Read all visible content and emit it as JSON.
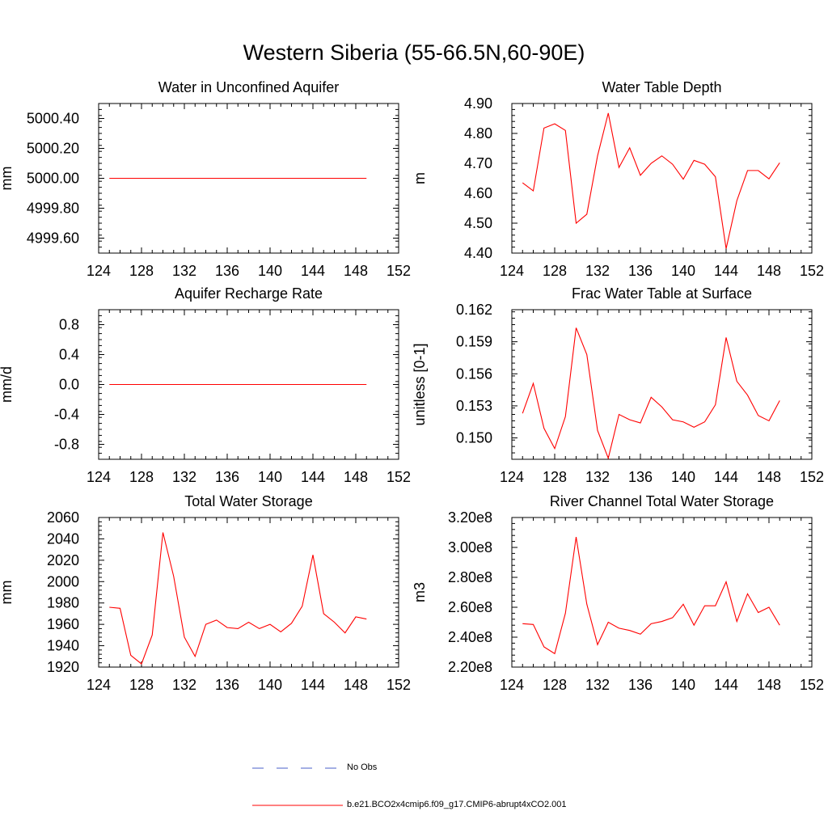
{
  "figure": {
    "title": "Western Siberia (55-66.5N,60-90E)",
    "colors": {
      "series": "#ff0000",
      "obs": "#4a5fc8",
      "axis": "#000000"
    }
  },
  "legend": [
    {
      "label": "No Obs",
      "style": "dashed",
      "color": "#4a5fc8"
    },
    {
      "label": "b.e21.BCO2x4cmip6.f09_g17.CMIP6-abrupt4xCO2.001",
      "style": "solid",
      "color": "#ff0000"
    }
  ],
  "chart_data": [
    {
      "type": "line",
      "title": "Water in Unconfined Aquifer",
      "xlabel": "",
      "ylabel": "mm",
      "xlim": [
        124,
        152
      ],
      "ylim": [
        4999.5,
        5000.5
      ],
      "xticks": [
        124,
        128,
        132,
        136,
        140,
        144,
        148,
        152
      ],
      "yticks": [
        4999.6,
        4999.8,
        5000.0,
        5000.2,
        5000.4
      ],
      "ytick_labels": [
        "4999.60",
        "4999.80",
        "5000.00",
        "5000.20",
        "5000.40"
      ],
      "x": [
        125,
        126,
        127,
        128,
        129,
        130,
        131,
        132,
        133,
        134,
        135,
        136,
        137,
        138,
        139,
        140,
        141,
        142,
        143,
        144,
        145,
        146,
        147,
        148,
        149
      ],
      "series": [
        {
          "values": [
            5000,
            5000,
            5000,
            5000,
            5000,
            5000,
            5000,
            5000,
            5000,
            5000,
            5000,
            5000,
            5000,
            5000,
            5000,
            5000,
            5000,
            5000,
            5000,
            5000,
            5000,
            5000,
            5000,
            5000,
            5000
          ]
        }
      ]
    },
    {
      "type": "line",
      "title": "Water Table Depth",
      "xlabel": "",
      "ylabel": "m",
      "xlim": [
        124,
        152
      ],
      "ylim": [
        4.4,
        4.9
      ],
      "xticks": [
        124,
        128,
        132,
        136,
        140,
        144,
        148,
        152
      ],
      "yticks": [
        4.4,
        4.5,
        4.6,
        4.7,
        4.8,
        4.9
      ],
      "ytick_labels": [
        "4.40",
        "4.50",
        "4.60",
        "4.70",
        "4.80",
        "4.90"
      ],
      "x": [
        125,
        126,
        127,
        128,
        129,
        130,
        131,
        132,
        133,
        134,
        135,
        136,
        137,
        138,
        139,
        140,
        141,
        142,
        143,
        144,
        145,
        146,
        147,
        148,
        149
      ],
      "series": [
        {
          "values": [
            4.635,
            4.608,
            4.818,
            4.832,
            4.81,
            4.5,
            4.53,
            4.725,
            4.868,
            4.686,
            4.752,
            4.66,
            4.7,
            4.725,
            4.697,
            4.647,
            4.71,
            4.697,
            4.655,
            4.415,
            4.575,
            4.676,
            4.676,
            4.648,
            4.702
          ]
        }
      ]
    },
    {
      "type": "line",
      "title": "Aquifer Recharge Rate",
      "xlabel": "",
      "ylabel": "mm/d",
      "xlim": [
        124,
        152
      ],
      "ylim": [
        -1.0,
        1.0
      ],
      "xticks": [
        124,
        128,
        132,
        136,
        140,
        144,
        148,
        152
      ],
      "yticks": [
        -0.8,
        -0.4,
        0.0,
        0.4,
        0.8
      ],
      "ytick_labels": [
        "-0.8",
        "-0.4",
        "0.0",
        "0.4",
        "0.8"
      ],
      "x": [
        125,
        126,
        127,
        128,
        129,
        130,
        131,
        132,
        133,
        134,
        135,
        136,
        137,
        138,
        139,
        140,
        141,
        142,
        143,
        144,
        145,
        146,
        147,
        148,
        149
      ],
      "series": [
        {
          "values": [
            0,
            0,
            0,
            0,
            0,
            0,
            0,
            0,
            0,
            0,
            0,
            0,
            0,
            0,
            0,
            0,
            0,
            0,
            0,
            0,
            0,
            0,
            0,
            0,
            0
          ]
        }
      ]
    },
    {
      "type": "line",
      "title": "Frac Water Table at Surface",
      "xlabel": "",
      "ylabel": "unitless [0-1]",
      "xlim": [
        124,
        152
      ],
      "ylim": [
        0.148,
        0.162
      ],
      "xticks": [
        124,
        128,
        132,
        136,
        140,
        144,
        148,
        152
      ],
      "yticks": [
        0.15,
        0.153,
        0.156,
        0.159,
        0.162
      ],
      "ytick_labels": [
        "0.150",
        "0.153",
        "0.156",
        "0.159",
        "0.162"
      ],
      "x": [
        125,
        126,
        127,
        128,
        129,
        130,
        131,
        132,
        133,
        134,
        135,
        136,
        137,
        138,
        139,
        140,
        141,
        142,
        143,
        144,
        145,
        146,
        147,
        148,
        149
      ],
      "series": [
        {
          "values": [
            0.1523,
            0.1551,
            0.1509,
            0.149,
            0.152,
            0.1603,
            0.1578,
            0.1507,
            0.1481,
            0.1522,
            0.1517,
            0.1514,
            0.1538,
            0.1529,
            0.1517,
            0.1515,
            0.151,
            0.1515,
            0.1531,
            0.1594,
            0.1553,
            0.154,
            0.1521,
            0.1516,
            0.1535
          ]
        }
      ]
    },
    {
      "type": "line",
      "title": "Total Water Storage",
      "xlabel": "",
      "ylabel": "mm",
      "xlim": [
        124,
        152
      ],
      "ylim": [
        1920,
        2060
      ],
      "xticks": [
        124,
        128,
        132,
        136,
        140,
        144,
        148,
        152
      ],
      "yticks": [
        1920,
        1940,
        1960,
        1980,
        2000,
        2020,
        2040,
        2060
      ],
      "ytick_labels": [
        "1920",
        "1940",
        "1960",
        "1980",
        "2000",
        "2020",
        "2040",
        "2060"
      ],
      "x": [
        125,
        126,
        127,
        128,
        129,
        130,
        131,
        132,
        133,
        134,
        135,
        136,
        137,
        138,
        139,
        140,
        141,
        142,
        143,
        144,
        145,
        146,
        147,
        148,
        149
      ],
      "series": [
        {
          "values": [
            1976,
            1975,
            1931,
            1923,
            1950,
            2046,
            2005,
            1948,
            1930,
            1960,
            1964,
            1957,
            1956,
            1962,
            1956,
            1960,
            1953,
            1961,
            1977,
            2025,
            1970,
            1962,
            1952,
            1967,
            1965
          ]
        }
      ]
    },
    {
      "type": "line",
      "title": "River Channel Total Water Storage",
      "xlabel": "",
      "ylabel": "m3",
      "xlim": [
        124,
        152
      ],
      "ylim": [
        220000000.0,
        320000000.0
      ],
      "xticks": [
        124,
        128,
        132,
        136,
        140,
        144,
        148,
        152
      ],
      "yticks": [
        220000000.0,
        240000000.0,
        260000000.0,
        280000000.0,
        300000000.0,
        320000000.0
      ],
      "ytick_labels": [
        "2.20e8",
        "2.40e8",
        "2.60e8",
        "2.80e8",
        "3.00e8",
        "3.20e8"
      ],
      "x": [
        125,
        126,
        127,
        128,
        129,
        130,
        131,
        132,
        133,
        134,
        135,
        136,
        137,
        138,
        139,
        140,
        141,
        142,
        143,
        144,
        145,
        146,
        147,
        148,
        149
      ],
      "series": [
        {
          "values": [
            249000000.0,
            248500000.0,
            233500000.0,
            229000000.0,
            256000000.0,
            307000000.0,
            262000000.0,
            235000000.0,
            250000000.0,
            246000000.0,
            244500000.0,
            242000000.0,
            249000000.0,
            250500000.0,
            253000000.0,
            262000000.0,
            248000000.0,
            261000000.0,
            261000000.0,
            277000000.0,
            250500000.0,
            269000000.0,
            256500000.0,
            260000000.0,
            248000000.0
          ]
        }
      ]
    }
  ]
}
